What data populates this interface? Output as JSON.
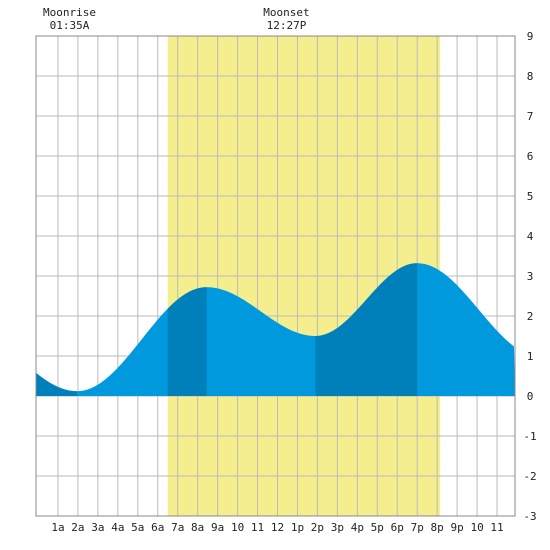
{
  "chart_data": {
    "type": "area",
    "title": "",
    "xlabel": "",
    "ylabel": "",
    "x_range_hours": [
      -0.1,
      23.9
    ],
    "ylim": [
      -3,
      9
    ],
    "y_ticks": [
      -3,
      -2,
      -1,
      0,
      1,
      2,
      3,
      4,
      5,
      6,
      7,
      8,
      9
    ],
    "x_ticks": [
      {
        "hour": 1,
        "label": "1a"
      },
      {
        "hour": 2,
        "label": "2a"
      },
      {
        "hour": 3,
        "label": "3a"
      },
      {
        "hour": 4,
        "label": "4a"
      },
      {
        "hour": 5,
        "label": "5a"
      },
      {
        "hour": 6,
        "label": "6a"
      },
      {
        "hour": 7,
        "label": "7a"
      },
      {
        "hour": 8,
        "label": "8a"
      },
      {
        "hour": 9,
        "label": "9a"
      },
      {
        "hour": 10,
        "label": "10"
      },
      {
        "hour": 11,
        "label": "11"
      },
      {
        "hour": 12,
        "label": "12"
      },
      {
        "hour": 13,
        "label": "1p"
      },
      {
        "hour": 14,
        "label": "2p"
      },
      {
        "hour": 15,
        "label": "3p"
      },
      {
        "hour": 16,
        "label": "4p"
      },
      {
        "hour": 17,
        "label": "5p"
      },
      {
        "hour": 18,
        "label": "6p"
      },
      {
        "hour": 19,
        "label": "7p"
      },
      {
        "hour": 20,
        "label": "8p"
      },
      {
        "hour": 21,
        "label": "9p"
      },
      {
        "hour": 22,
        "label": "10"
      },
      {
        "hour": 23,
        "label": "11"
      }
    ],
    "grid": true,
    "daylight_hours": [
      6.5,
      20.15
    ],
    "tide_extremes": [
      {
        "hour": 1.95,
        "value": 0.12
      },
      {
        "hour": 8.45,
        "value": 2.72
      },
      {
        "hour": 13.9,
        "value": 1.5
      },
      {
        "hour": 19.0,
        "value": 3.32
      }
    ],
    "tide_start": {
      "hour": -0.1,
      "value": 0.58
    },
    "tide_end": {
      "hour": 23.9,
      "value": 1.22
    },
    "shade_bands_hours": [
      [
        -0.1,
        1.95
      ],
      [
        6.5,
        8.45
      ],
      [
        13.9,
        19.0
      ]
    ],
    "moon_events": [
      {
        "name": "Moonrise",
        "time": "01:35A",
        "hour": 1.58
      },
      {
        "name": "Moonset",
        "time": "12:27P",
        "hour": 12.45
      }
    ],
    "colors": {
      "daylight": "#f4ee8e",
      "tide": "#0099dd",
      "tide_dark": "#0080bb",
      "grid": "#bbbbbb",
      "background": "#ffffff"
    }
  }
}
